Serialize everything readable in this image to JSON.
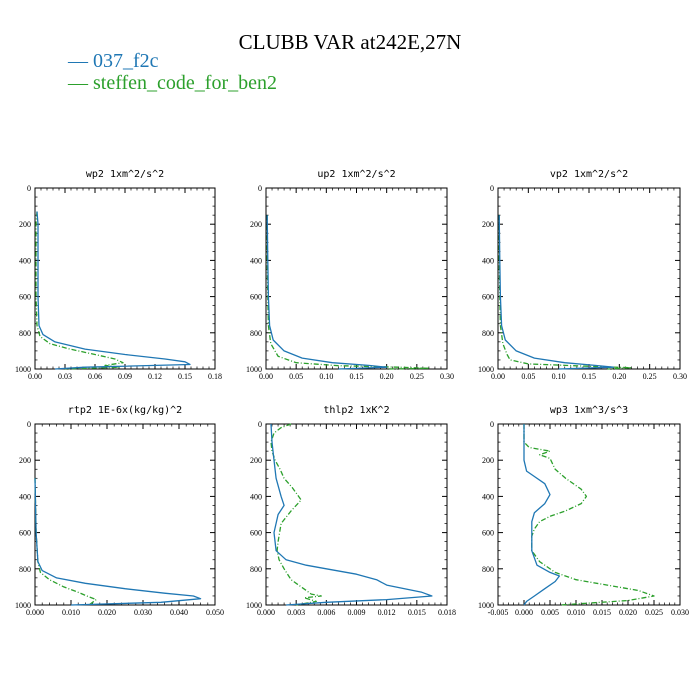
{
  "title": "CLUBB VAR at242E,27N",
  "legend": [
    {
      "label": "— 037_f2c",
      "color": "#1f77b4",
      "dash": "solid"
    },
    {
      "label": "— steffen_code_for_ben2",
      "color": "#2ca02c",
      "dash": "dashdot"
    }
  ],
  "chart_data": [
    {
      "type": "line",
      "title": "wp2   1xm^2/s^2",
      "xlim": [
        0,
        0.18
      ],
      "ylim": [
        0,
        1000
      ],
      "y_inverted": true,
      "xticks": [
        "0.00",
        "0.03",
        "0.06",
        "0.09",
        "0.12",
        "0.15",
        "0.18"
      ],
      "yticks": [
        "0",
        "200",
        "400",
        "600",
        "800",
        "1000"
      ],
      "series": [
        {
          "name": "037_f2c",
          "points": [
            [
              0.002,
              130
            ],
            [
              0.003,
              200
            ],
            [
              0.003,
              400
            ],
            [
              0.003,
              600
            ],
            [
              0.004,
              760
            ],
            [
              0.008,
              810
            ],
            [
              0.02,
              850
            ],
            [
              0.05,
              890
            ],
            [
              0.09,
              920
            ],
            [
              0.13,
              945
            ],
            [
              0.15,
              960
            ],
            [
              0.155,
              975
            ],
            [
              0.05,
              990
            ],
            [
              0.02,
              1000
            ]
          ]
        },
        {
          "name": "steffen_code_for_ben2",
          "points": [
            [
              0.002,
              130
            ],
            [
              0.001,
              200
            ],
            [
              0.001,
              400
            ],
            [
              0.001,
              600
            ],
            [
              0.002,
              760
            ],
            [
              0.005,
              820
            ],
            [
              0.015,
              860
            ],
            [
              0.035,
              890
            ],
            [
              0.06,
              920
            ],
            [
              0.08,
              945
            ],
            [
              0.088,
              965
            ],
            [
              0.07,
              980
            ],
            [
              0.085,
              990
            ],
            [
              0.03,
              1000
            ]
          ]
        }
      ]
    },
    {
      "type": "line",
      "title": "up2   1xm^2/s^2",
      "xlim": [
        0,
        0.3
      ],
      "ylim": [
        0,
        1000
      ],
      "y_inverted": true,
      "xticks": [
        "0.00",
        "0.05",
        "0.10",
        "0.15",
        "0.20",
        "0.25",
        "0.30"
      ],
      "yticks": [
        "0",
        "200",
        "400",
        "600",
        "800",
        "1000"
      ],
      "series": [
        {
          "name": "037_f2c",
          "points": [
            [
              0.002,
              150
            ],
            [
              0.003,
              400
            ],
            [
              0.004,
              600
            ],
            [
              0.006,
              760
            ],
            [
              0.012,
              840
            ],
            [
              0.03,
              900
            ],
            [
              0.06,
              940
            ],
            [
              0.11,
              965
            ],
            [
              0.17,
              980
            ],
            [
              0.2,
              990
            ],
            [
              0.12,
              1000
            ]
          ]
        },
        {
          "name": "steffen_code_for_ben2",
          "points": [
            [
              0.002,
              150
            ],
            [
              0.002,
              400
            ],
            [
              0.003,
              600
            ],
            [
              0.004,
              760
            ],
            [
              0.008,
              860
            ],
            [
              0.02,
              930
            ],
            [
              0.05,
              965
            ],
            [
              0.12,
              982
            ],
            [
              0.22,
              990
            ],
            [
              0.27,
              996
            ],
            [
              0.2,
              1000
            ]
          ]
        }
      ]
    },
    {
      "type": "line",
      "title": "vp2   1xm^2/s^2",
      "xlim": [
        0,
        0.3
      ],
      "ylim": [
        0,
        1000
      ],
      "y_inverted": true,
      "xticks": [
        "0.00",
        "0.05",
        "0.10",
        "0.15",
        "0.20",
        "0.25",
        "0.30"
      ],
      "yticks": [
        "0",
        "200",
        "400",
        "600",
        "800",
        "1000"
      ],
      "series": [
        {
          "name": "037_f2c",
          "points": [
            [
              0.002,
              150
            ],
            [
              0.003,
              400
            ],
            [
              0.004,
              600
            ],
            [
              0.006,
              760
            ],
            [
              0.012,
              840
            ],
            [
              0.03,
              900
            ],
            [
              0.06,
              940
            ],
            [
              0.11,
              965
            ],
            [
              0.16,
              980
            ],
            [
              0.19,
              990
            ],
            [
              0.1,
              1000
            ]
          ]
        },
        {
          "name": "steffen_code_for_ben2",
          "points": [
            [
              0.002,
              150
            ],
            [
              0.002,
              400
            ],
            [
              0.003,
              600
            ],
            [
              0.004,
              760
            ],
            [
              0.008,
              860
            ],
            [
              0.015,
              920
            ],
            [
              0.02,
              950
            ],
            [
              0.05,
              972
            ],
            [
              0.15,
              985
            ],
            [
              0.22,
              993
            ],
            [
              0.18,
              1000
            ]
          ]
        }
      ]
    },
    {
      "type": "line",
      "title": "rtp2   1E-6x(kg/kg)^2",
      "xlim": [
        0,
        0.05
      ],
      "ylim": [
        0,
        1000
      ],
      "y_inverted": true,
      "xticks": [
        "0.000",
        "0.010",
        "0.020",
        "0.030",
        "0.040",
        "0.050"
      ],
      "yticks": [
        "0",
        "200",
        "400",
        "600",
        "800",
        "1000"
      ],
      "series": [
        {
          "name": "037_f2c",
          "points": [
            [
              0.0,
              300
            ],
            [
              0.0003,
              600
            ],
            [
              0.0008,
              760
            ],
            [
              0.002,
              810
            ],
            [
              0.006,
              850
            ],
            [
              0.014,
              880
            ],
            [
              0.025,
              910
            ],
            [
              0.036,
              935
            ],
            [
              0.044,
              950
            ],
            [
              0.046,
              965
            ],
            [
              0.035,
              985
            ],
            [
              0.01,
              1000
            ]
          ]
        },
        {
          "name": "steffen_code_for_ben2",
          "points": [
            [
              0.0,
              300
            ],
            [
              0.0003,
              600
            ],
            [
              0.0008,
              760
            ],
            [
              0.0015,
              820
            ],
            [
              0.004,
              860
            ],
            [
              0.008,
              900
            ],
            [
              0.012,
              930
            ],
            [
              0.015,
              955
            ],
            [
              0.017,
              970
            ],
            [
              0.016,
              985
            ],
            [
              0.015,
              1000
            ]
          ]
        }
      ]
    },
    {
      "type": "line",
      "title": "thlp2   1xK^2",
      "xlim": [
        0,
        0.018
      ],
      "ylim": [
        0,
        1000
      ],
      "y_inverted": true,
      "xticks": [
        "0.000",
        "0.003",
        "0.006",
        "0.009",
        "0.012",
        "0.015",
        "0.018"
      ],
      "yticks": [
        "0",
        "200",
        "400",
        "600",
        "800",
        "1000"
      ],
      "series": [
        {
          "name": "037_f2c",
          "points": [
            [
              0.0005,
              0
            ],
            [
              0.0006,
              100
            ],
            [
              0.0008,
              200
            ],
            [
              0.001,
              300
            ],
            [
              0.0015,
              400
            ],
            [
              0.0018,
              450
            ],
            [
              0.0012,
              500
            ],
            [
              0.0008,
              600
            ],
            [
              0.001,
              700
            ],
            [
              0.002,
              750
            ],
            [
              0.004,
              780
            ],
            [
              0.006,
              800
            ],
            [
              0.009,
              830
            ],
            [
              0.011,
              860
            ],
            [
              0.012,
              890
            ],
            [
              0.0155,
              930
            ],
            [
              0.0165,
              950
            ],
            [
              0.012,
              970
            ],
            [
              0.006,
              985
            ],
            [
              0.002,
              1000
            ]
          ]
        },
        {
          "name": "steffen_code_for_ben2",
          "points": [
            [
              0.0025,
              0
            ],
            [
              0.0015,
              20
            ],
            [
              0.0008,
              50
            ],
            [
              0.0005,
              100
            ],
            [
              0.0006,
              150
            ],
            [
              0.0009,
              200
            ],
            [
              0.0014,
              250
            ],
            [
              0.0018,
              300
            ],
            [
              0.0026,
              350
            ],
            [
              0.0035,
              420
            ],
            [
              0.0025,
              480
            ],
            [
              0.0015,
              550
            ],
            [
              0.0012,
              650
            ],
            [
              0.0011,
              700
            ],
            [
              0.0013,
              750
            ],
            [
              0.0018,
              800
            ],
            [
              0.0025,
              860
            ],
            [
              0.0035,
              900
            ],
            [
              0.0045,
              940
            ],
            [
              0.0055,
              950
            ],
            [
              0.0038,
              960
            ],
            [
              0.005,
              980
            ],
            [
              0.003,
              1000
            ]
          ]
        }
      ]
    },
    {
      "type": "line",
      "title": "wp3   1xm^3/s^3",
      "xlim": [
        -0.005,
        0.03
      ],
      "ylim": [
        0,
        1000
      ],
      "y_inverted": true,
      "xticks": [
        "-0.005",
        "0.000",
        "0.005",
        "0.010",
        "0.015",
        "0.020",
        "0.025",
        "0.030"
      ],
      "yticks": [
        "0",
        "200",
        "400",
        "600",
        "800",
        "1000"
      ],
      "series": [
        {
          "name": "037_f2c",
          "points": [
            [
              0.0,
              0
            ],
            [
              0.0,
              100
            ],
            [
              0.0,
              200
            ],
            [
              0.0005,
              260
            ],
            [
              0.002,
              290
            ],
            [
              0.004,
              330
            ],
            [
              0.005,
              390
            ],
            [
              0.004,
              440
            ],
            [
              0.002,
              490
            ],
            [
              0.0015,
              540
            ],
            [
              0.0015,
              600
            ],
            [
              0.0015,
              700
            ],
            [
              0.0025,
              780
            ],
            [
              0.005,
              820
            ],
            [
              0.0068,
              840
            ],
            [
              0.006,
              870
            ],
            [
              0.004,
              910
            ],
            [
              0.002,
              950
            ],
            [
              0.0005,
              980
            ],
            [
              0.0,
              1000
            ]
          ]
        },
        {
          "name": "steffen_code_for_ben2",
          "points": [
            [
              0.0,
              0
            ],
            [
              0.0,
              100
            ],
            [
              0.001,
              130
            ],
            [
              0.005,
              150
            ],
            [
              0.003,
              170
            ],
            [
              0.005,
              190
            ],
            [
              0.006,
              250
            ],
            [
              0.008,
              300
            ],
            [
              0.011,
              360
            ],
            [
              0.012,
              400
            ],
            [
              0.011,
              440
            ],
            [
              0.008,
              480
            ],
            [
              0.005,
              510
            ],
            [
              0.003,
              540
            ],
            [
              0.002,
              580
            ],
            [
              0.0015,
              620
            ],
            [
              0.0015,
              700
            ],
            [
              0.003,
              760
            ],
            [
              0.006,
              820
            ],
            [
              0.01,
              860
            ],
            [
              0.016,
              890
            ],
            [
              0.022,
              920
            ],
            [
              0.025,
              950
            ],
            [
              0.02,
              975
            ],
            [
              0.007,
              1000
            ]
          ]
        }
      ]
    }
  ]
}
